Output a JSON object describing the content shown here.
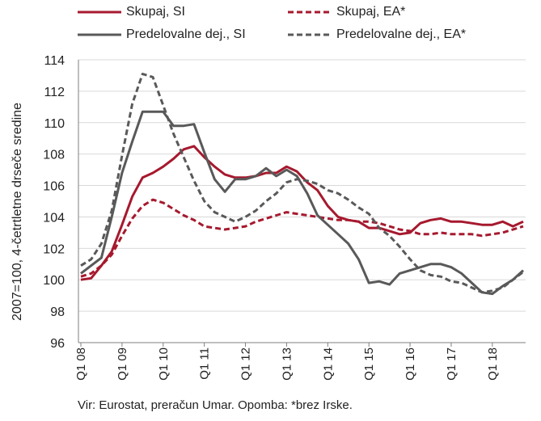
{
  "chart_data": {
    "type": "line",
    "ylabel": "2007=100, 4-četrtletne drseče sredine",
    "ylim": [
      96,
      114
    ],
    "yticks": [
      96,
      98,
      100,
      102,
      104,
      106,
      108,
      110,
      112,
      114
    ],
    "xtick_labels": [
      "Q1 08",
      "Q1 09",
      "Q1 10",
      "Q1 11",
      "Q1 12",
      "Q1 13",
      "Q1 14",
      "Q1 15",
      "Q1 16",
      "Q1 17",
      "Q1 18"
    ],
    "x_start": "Q1 08",
    "grid": "horizontal",
    "legend_position": "top",
    "series": [
      {
        "name": "Skupaj, SI",
        "color": "#A6192E",
        "style": "solid",
        "values": [
          100.0,
          100.1,
          100.9,
          101.8,
          103.5,
          105.3,
          106.5,
          106.8,
          107.2,
          107.7,
          108.3,
          108.5,
          107.8,
          107.2,
          106.7,
          106.5,
          106.5,
          106.6,
          106.8,
          106.8,
          107.2,
          106.9,
          106.2,
          105.7,
          104.7,
          104.0,
          103.8,
          103.7,
          103.3,
          103.3,
          103.1,
          102.9,
          103.0,
          103.6,
          103.8,
          103.9,
          103.7,
          103.7,
          103.6,
          103.5,
          103.5,
          103.7,
          103.4,
          103.7
        ]
      },
      {
        "name": "Skupaj, EA*",
        "color": "#A6192E",
        "style": "dashed",
        "values": [
          100.2,
          100.4,
          100.9,
          101.6,
          102.8,
          103.9,
          104.7,
          105.1,
          104.9,
          104.5,
          104.1,
          103.8,
          103.4,
          103.3,
          103.2,
          103.3,
          103.4,
          103.7,
          103.9,
          104.1,
          104.3,
          104.2,
          104.1,
          104.0,
          103.9,
          103.8,
          103.8,
          103.7,
          103.7,
          103.6,
          103.4,
          103.2,
          103.1,
          102.9,
          102.9,
          103.0,
          102.9,
          102.9,
          102.9,
          102.8,
          102.9,
          103.0,
          103.2,
          103.4
        ]
      },
      {
        "name": "Predelovalne dej., SI",
        "color": "#595959",
        "style": "solid",
        "values": [
          100.4,
          100.9,
          101.4,
          104.0,
          106.8,
          108.8,
          110.7,
          110.7,
          110.7,
          109.8,
          109.8,
          109.9,
          108.1,
          106.4,
          105.6,
          106.4,
          106.4,
          106.6,
          107.1,
          106.6,
          107.0,
          106.6,
          105.5,
          104.1,
          103.5,
          102.9,
          102.3,
          101.3,
          99.8,
          99.9,
          99.7,
          100.4,
          100.6,
          100.8,
          101.0,
          101.0,
          100.8,
          100.4,
          99.8,
          99.2,
          99.1,
          99.6,
          100.0,
          100.6
        ]
      },
      {
        "name": "Predelovalne dej., EA*",
        "color": "#595959",
        "style": "dashed",
        "values": [
          100.9,
          101.3,
          102.3,
          104.4,
          107.9,
          111.2,
          113.1,
          112.9,
          111.1,
          109.3,
          107.8,
          106.3,
          105.0,
          104.3,
          104.0,
          103.7,
          104.0,
          104.4,
          105.0,
          105.5,
          106.2,
          106.4,
          106.3,
          106.1,
          105.7,
          105.5,
          105.1,
          104.6,
          104.2,
          103.3,
          102.8,
          102.1,
          101.3,
          100.6,
          100.3,
          100.2,
          99.9,
          99.8,
          99.5,
          99.2,
          99.3,
          99.5,
          100.0,
          100.5
        ]
      }
    ]
  },
  "footnote": "Vir: Eurostat, preračun Umar. Opomba: *brez Irske."
}
